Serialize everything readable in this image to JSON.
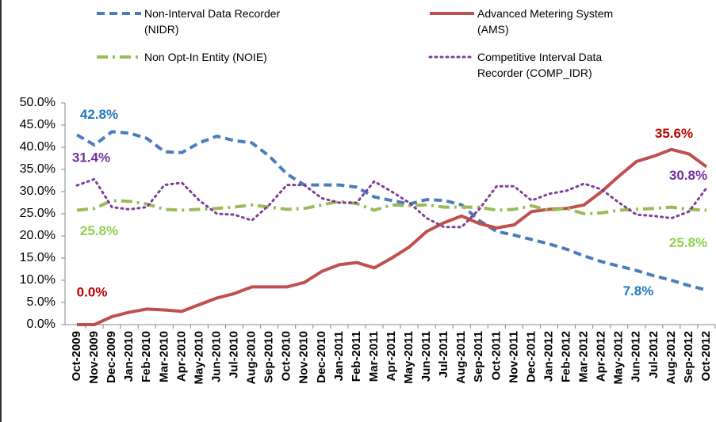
{
  "chart_data": {
    "type": "line",
    "categories": [
      "Oct-2009",
      "Nov-2009",
      "Dec-2009",
      "Jan-2010",
      "Feb-2010",
      "Mar-2010",
      "Apr-2010",
      "May-2010",
      "Jun-2010",
      "Jul-2010",
      "Aug-2010",
      "Sep-2010",
      "Oct-2010",
      "Nov-2010",
      "Dec-2010",
      "Jan-2011",
      "Feb-2011",
      "Mar-2011",
      "Apr-2011",
      "May-2011",
      "Jun-2011",
      "Jul-2011",
      "Aug-2011",
      "Sep-2011",
      "Oct-2011",
      "Nov-2011",
      "Dec-2011",
      "Jan-2012",
      "Feb-2012",
      "Mar-2012",
      "Apr-2012",
      "May-2012",
      "Jun-2012",
      "Jul-2012",
      "Aug-2012",
      "Sep-2012",
      "Oct-2012"
    ],
    "series": [
      {
        "name": "Non-Interval Data Recorder (NIDR)",
        "color": "#4a7ebb",
        "label_color": "#1f78c1",
        "dash": "dashed",
        "values": [
          42.8,
          40.5,
          43.5,
          43.2,
          42,
          39,
          38.8,
          41,
          42.5,
          41.5,
          41,
          38,
          34,
          31.5,
          31.5,
          31.5,
          31,
          28.8,
          28,
          27.2,
          28.2,
          28,
          27,
          23.5,
          21,
          20.2,
          19.2,
          18.2,
          17,
          15.5,
          14.2,
          13.2,
          12.2,
          11,
          10,
          8.8,
          7.8
        ],
        "value_labels": [
          "42.8%",
          null,
          null,
          null,
          null,
          null,
          null,
          null,
          null,
          null,
          null,
          null,
          null,
          null,
          null,
          null,
          null,
          null,
          null,
          null,
          null,
          null,
          null,
          null,
          null,
          null,
          null,
          null,
          null,
          null,
          null,
          null,
          null,
          null,
          null,
          null,
          "7.8%"
        ]
      },
      {
        "name": "Advanced Metering System (AMS)",
        "color": "#c0504d",
        "label_color": "#c00000",
        "dash": "solid",
        "values": [
          0,
          0,
          1.8,
          2.8,
          3.5,
          3.3,
          3,
          4.5,
          6,
          7,
          8.5,
          8.5,
          8.5,
          9.5,
          12,
          13.5,
          14,
          12.8,
          15,
          17.5,
          21,
          23,
          24.5,
          22.8,
          21.8,
          22.5,
          25.5,
          26,
          26.2,
          27,
          30,
          33.5,
          36.8,
          38,
          39.5,
          38.5,
          35.6
        ],
        "value_labels": [
          "0.0%",
          null,
          null,
          null,
          null,
          null,
          null,
          null,
          null,
          null,
          null,
          null,
          null,
          null,
          null,
          null,
          null,
          null,
          null,
          null,
          null,
          null,
          null,
          null,
          null,
          null,
          null,
          null,
          null,
          null,
          null,
          null,
          null,
          null,
          null,
          null,
          "35.6%"
        ]
      },
      {
        "name": "Non Opt-In Entity (NOIE)",
        "color": "#9bbb59",
        "label_color": "#92d050",
        "dash": "dashdot",
        "values": [
          25.8,
          26.2,
          28,
          27.8,
          27.2,
          26,
          25.8,
          26,
          26.2,
          26.5,
          27,
          26.5,
          26,
          26.2,
          27,
          27.8,
          27.3,
          25.8,
          27,
          26.8,
          27,
          26.5,
          26.5,
          26.5,
          25.8,
          26,
          26.8,
          25.8,
          26.2,
          25,
          25.2,
          25.8,
          26,
          26.2,
          26.5,
          26,
          25.8
        ],
        "value_labels": [
          "25.8%",
          null,
          null,
          null,
          null,
          null,
          null,
          null,
          null,
          null,
          null,
          null,
          null,
          null,
          null,
          null,
          null,
          null,
          null,
          null,
          null,
          null,
          null,
          null,
          null,
          null,
          null,
          null,
          null,
          null,
          null,
          null,
          null,
          null,
          null,
          null,
          "25.8%"
        ]
      },
      {
        "name": "Competitive Interval Data Recorder (COMP_IDR)",
        "color": "#7f3f98",
        "label_color": "#7030a0",
        "dash": "dotted",
        "values": [
          31.4,
          32.8,
          26.5,
          26,
          26.5,
          31.5,
          32,
          28,
          25,
          24.8,
          23.5,
          27,
          31.5,
          31.5,
          28.5,
          27.5,
          27.5,
          32.3,
          30,
          27.5,
          24,
          22,
          22,
          26,
          31.2,
          31.2,
          28,
          29.5,
          30.2,
          31.8,
          30.5,
          27.5,
          24.8,
          24.5,
          24,
          25.5,
          30.8
        ],
        "value_labels": [
          "31.4%",
          null,
          null,
          null,
          null,
          null,
          null,
          null,
          null,
          null,
          null,
          null,
          null,
          null,
          null,
          null,
          null,
          null,
          null,
          null,
          null,
          null,
          null,
          null,
          null,
          null,
          null,
          null,
          null,
          null,
          null,
          null,
          null,
          null,
          null,
          null,
          "30.8%"
        ]
      }
    ],
    "ylim": [
      0,
      50
    ],
    "yticks": [
      {
        "value": 0,
        "label": "0.0%"
      },
      {
        "value": 5,
        "label": "5.0%"
      },
      {
        "value": 10,
        "label": "10.0%"
      },
      {
        "value": 15,
        "label": "15.0%"
      },
      {
        "value": 20,
        "label": "20.0%"
      },
      {
        "value": 25,
        "label": "25.0%"
      },
      {
        "value": 30,
        "label": "30.0%"
      },
      {
        "value": 35,
        "label": "35.0%"
      },
      {
        "value": 40,
        "label": "40.0%"
      },
      {
        "value": 45,
        "label": "45.0%"
      },
      {
        "value": 50,
        "label": "50.0%"
      }
    ],
    "grid": false,
    "legend": "top"
  }
}
